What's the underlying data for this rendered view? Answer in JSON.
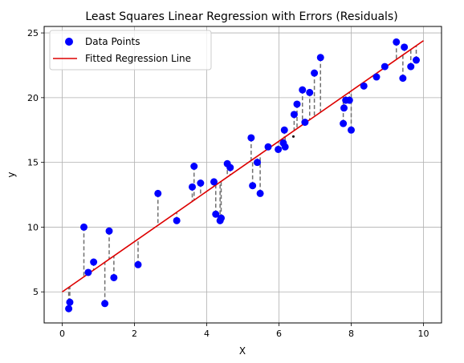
{
  "chart_data": {
    "type": "scatter",
    "title": "Least Squares Linear Regression with Errors (Residuals)",
    "xlabel": "X",
    "ylabel": "y",
    "xlim": [
      -0.5,
      10.5
    ],
    "ylim": [
      2.6,
      25.5
    ],
    "xticks": [
      0,
      2,
      4,
      6,
      8,
      10
    ],
    "xtick_labels": [
      "0",
      "2",
      "4",
      "6",
      "8",
      "10"
    ],
    "yticks": [
      5,
      10,
      15,
      20,
      25
    ],
    "ytick_labels": [
      "5",
      "10",
      "15",
      "20",
      "25"
    ],
    "grid": true,
    "legend_placement": "top-left",
    "series": [
      {
        "name": "Data Points",
        "kind": "scatter",
        "color": "#0000ff",
        "x": [
          0.18,
          0.21,
          0.6,
          0.72,
          0.87,
          1.18,
          1.3,
          1.43,
          2.1,
          2.65,
          3.17,
          3.6,
          3.65,
          3.83,
          4.2,
          4.25,
          4.37,
          4.4,
          4.57,
          4.65,
          5.23,
          5.27,
          5.4,
          5.48,
          5.7,
          5.98,
          6.12,
          6.15,
          6.17,
          6.42,
          6.5,
          6.65,
          6.72,
          6.85,
          6.98,
          7.15,
          7.78,
          7.8,
          7.85,
          7.95,
          8.0,
          8.35,
          8.7,
          8.93,
          9.25,
          9.43,
          9.47,
          9.65,
          9.8
        ],
        "y": [
          3.7,
          4.2,
          10.0,
          6.5,
          7.3,
          4.1,
          9.7,
          6.1,
          7.1,
          12.6,
          10.5,
          13.1,
          14.7,
          13.4,
          13.5,
          11.0,
          10.5,
          10.7,
          14.9,
          14.6,
          16.9,
          13.2,
          15.0,
          12.6,
          16.2,
          16.0,
          16.5,
          17.5,
          16.2,
          18.7,
          19.5,
          20.6,
          18.1,
          20.4,
          21.9,
          23.1,
          18.0,
          19.2,
          19.8,
          19.8,
          17.5,
          20.9,
          21.6,
          22.4,
          24.3,
          21.5,
          23.9,
          22.4,
          22.9
        ]
      },
      {
        "name": "Fitted Regression Line",
        "kind": "line",
        "color": "#dd0000",
        "x": [
          0,
          10
        ],
        "y": [
          5.0,
          24.4
        ]
      }
    ],
    "annotations": [
      {
        "x": 6.4,
        "y": 17.0,
        "label": ""
      }
    ],
    "residual_color": "#707070"
  }
}
